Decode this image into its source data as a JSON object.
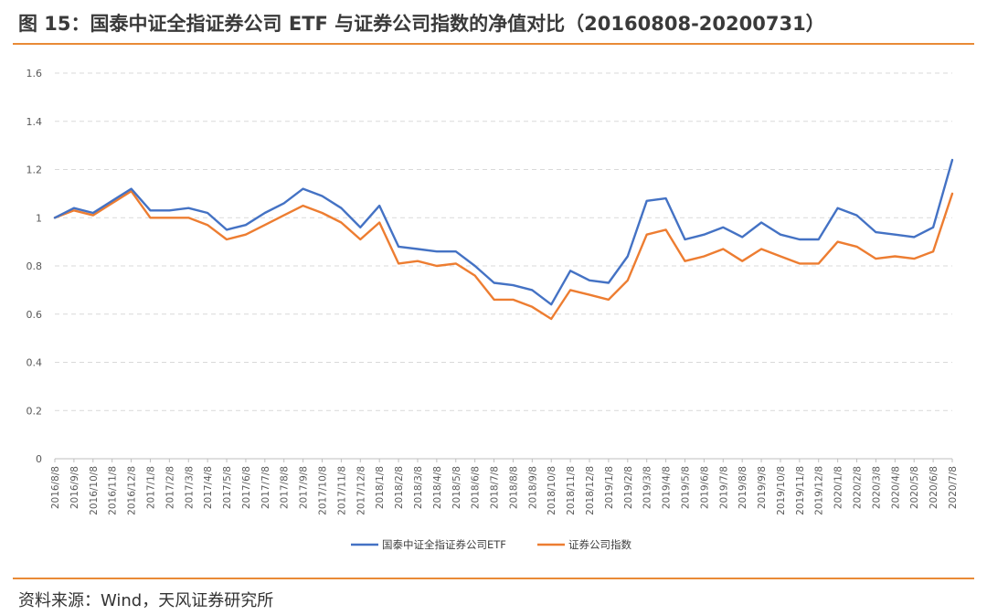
{
  "title": "图 15：国泰中证全指证券公司 ETF 与证券公司指数的净值对比（20160808-20200731）",
  "source": "资料来源：Wind，天风证券研究所",
  "colors": {
    "accent_rule": "#e98a36",
    "series_etf": "#4472c4",
    "series_index": "#ed7d31",
    "grid": "#d9d9d9"
  },
  "chart_data": {
    "type": "line",
    "title": "",
    "xlabel": "",
    "ylabel": "",
    "ylim": [
      0,
      1.6
    ],
    "yticks": [
      "0",
      "0.2",
      "0.4",
      "0.6",
      "0.8",
      "1",
      "1.2",
      "1.4",
      "1.6"
    ],
    "grid": "horizontal dashed",
    "legend_position": "bottom-center",
    "x": [
      "2016/8/8",
      "2016/9/8",
      "2016/10/8",
      "2016/11/8",
      "2016/12/8",
      "2017/1/8",
      "2017/2/8",
      "2017/3/8",
      "2017/4/8",
      "2017/5/8",
      "2017/6/8",
      "2017/7/8",
      "2017/8/8",
      "2017/9/8",
      "2017/10/8",
      "2017/11/8",
      "2017/12/8",
      "2018/1/8",
      "2018/2/8",
      "2018/3/8",
      "2018/4/8",
      "2018/5/8",
      "2018/6/8",
      "2018/7/8",
      "2018/8/8",
      "2018/9/8",
      "2018/10/8",
      "2018/11/8",
      "2018/12/8",
      "2019/1/8",
      "2019/2/8",
      "2019/3/8",
      "2019/4/8",
      "2019/5/8",
      "2019/6/8",
      "2019/7/8",
      "2019/8/8",
      "2019/9/8",
      "2019/10/8",
      "2019/11/8",
      "2019/12/8",
      "2020/1/8",
      "2020/2/8",
      "2020/3/8",
      "2020/4/8",
      "2020/5/8",
      "2020/6/8",
      "2020/7/8"
    ],
    "series": [
      {
        "name": "国泰中证全指证券公司ETF",
        "color": "#4472c4",
        "values": [
          1.0,
          1.04,
          1.02,
          1.07,
          1.12,
          1.03,
          1.03,
          1.04,
          1.02,
          0.95,
          0.97,
          1.02,
          1.06,
          1.12,
          1.09,
          1.04,
          0.96,
          1.05,
          0.88,
          0.87,
          0.86,
          0.86,
          0.8,
          0.73,
          0.72,
          0.7,
          0.64,
          0.78,
          0.74,
          0.73,
          0.84,
          1.07,
          1.08,
          0.91,
          0.93,
          0.96,
          0.92,
          0.98,
          0.93,
          0.91,
          0.91,
          1.04,
          1.01,
          0.94,
          0.93,
          0.92,
          0.96,
          1.24
        ]
      },
      {
        "name": "证券公司指数",
        "color": "#ed7d31",
        "values": [
          1.0,
          1.03,
          1.01,
          1.06,
          1.11,
          1.0,
          1.0,
          1.0,
          0.97,
          0.91,
          0.93,
          0.97,
          1.01,
          1.05,
          1.02,
          0.98,
          0.91,
          0.98,
          0.81,
          0.82,
          0.8,
          0.81,
          0.76,
          0.66,
          0.66,
          0.63,
          0.58,
          0.7,
          0.68,
          0.66,
          0.74,
          0.93,
          0.95,
          0.82,
          0.84,
          0.87,
          0.82,
          0.87,
          0.84,
          0.81,
          0.81,
          0.9,
          0.88,
          0.83,
          0.84,
          0.83,
          0.86,
          1.1
        ]
      }
    ]
  }
}
